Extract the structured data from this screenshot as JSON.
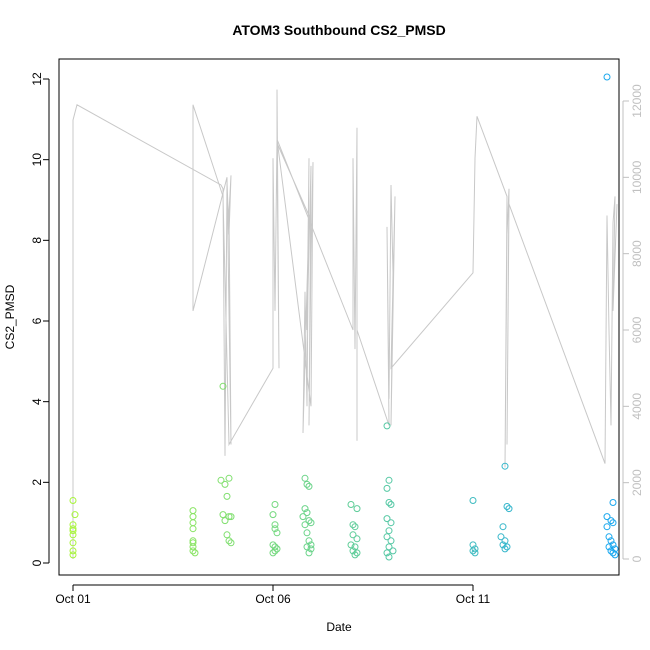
{
  "chart_data": {
    "type": "scatter",
    "title": "ATOM3 Southbound CS2_PMSD",
    "xlabel": "Date",
    "ylabel": "CS2_PMSD",
    "x_tick_labels": [
      "Oct 01",
      "Oct 06",
      "Oct 11"
    ],
    "x_ticks_day": [
      1,
      6,
      11
    ],
    "xlim_day": [
      0.65,
      14.65
    ],
    "ylim": [
      0,
      12.3
    ],
    "y_ticks": [
      "0",
      "2",
      "4",
      "6",
      "8",
      "10",
      "12"
    ],
    "secondary_ylim": [
      0,
      12300
    ],
    "secondary_y_ticks": [
      "0",
      "2000",
      "4000",
      "6000",
      "8000",
      "10000",
      "12000"
    ],
    "point_color_range": [
      "#a8f53a",
      "#19a7f0"
    ],
    "secondary_line_color": "#c8c8c8",
    "series": [
      {
        "points": [
          [
            1.0,
            1.55
          ],
          [
            1.0,
            0.95
          ],
          [
            1.0,
            0.85
          ],
          [
            1.0,
            0.8
          ],
          [
            1.0,
            0.7
          ],
          [
            1.0,
            0.5
          ],
          [
            1.0,
            0.3
          ],
          [
            1.0,
            0.2
          ],
          [
            1.05,
            1.2
          ],
          [
            4.0,
            1.3
          ],
          [
            4.0,
            1.15
          ],
          [
            4.0,
            1.0
          ],
          [
            4.0,
            0.85
          ],
          [
            4.0,
            0.55
          ],
          [
            4.0,
            0.5
          ],
          [
            4.0,
            0.4
          ],
          [
            4.0,
            0.3
          ],
          [
            4.05,
            0.25
          ],
          [
            4.75,
            4.38
          ],
          [
            4.7,
            2.05
          ],
          [
            4.75,
            1.2
          ],
          [
            4.8,
            1.95
          ],
          [
            4.9,
            2.1
          ],
          [
            4.85,
            1.65
          ],
          [
            4.9,
            1.15
          ],
          [
            4.8,
            1.05
          ],
          [
            4.95,
            1.15
          ],
          [
            4.85,
            0.7
          ],
          [
            4.9,
            0.55
          ],
          [
            4.95,
            0.5
          ],
          [
            6.05,
            1.45
          ],
          [
            6.0,
            1.2
          ],
          [
            6.05,
            0.95
          ],
          [
            6.05,
            0.85
          ],
          [
            6.1,
            0.75
          ],
          [
            6.0,
            0.45
          ],
          [
            6.05,
            0.4
          ],
          [
            6.1,
            0.35
          ],
          [
            6.05,
            0.3
          ],
          [
            6.0,
            0.25
          ],
          [
            6.8,
            2.1
          ],
          [
            6.85,
            1.95
          ],
          [
            6.9,
            1.9
          ],
          [
            6.8,
            1.35
          ],
          [
            6.85,
            1.25
          ],
          [
            6.75,
            1.15
          ],
          [
            6.9,
            1.05
          ],
          [
            6.95,
            1.0
          ],
          [
            6.8,
            0.95
          ],
          [
            6.85,
            0.75
          ],
          [
            6.9,
            0.55
          ],
          [
            6.95,
            0.45
          ],
          [
            6.85,
            0.4
          ],
          [
            6.95,
            0.35
          ],
          [
            6.9,
            0.25
          ],
          [
            7.95,
            1.45
          ],
          [
            8.1,
            1.35
          ],
          [
            8.0,
            0.95
          ],
          [
            8.05,
            0.9
          ],
          [
            8.0,
            0.7
          ],
          [
            8.1,
            0.6
          ],
          [
            7.95,
            0.45
          ],
          [
            8.05,
            0.4
          ],
          [
            8.0,
            0.3
          ],
          [
            8.1,
            0.25
          ],
          [
            8.05,
            0.2
          ],
          [
            8.85,
            3.4
          ],
          [
            8.9,
            2.05
          ],
          [
            8.85,
            1.85
          ],
          [
            8.9,
            1.5
          ],
          [
            8.95,
            1.45
          ],
          [
            8.85,
            1.1
          ],
          [
            8.95,
            1.0
          ],
          [
            8.9,
            0.8
          ],
          [
            8.85,
            0.65
          ],
          [
            8.95,
            0.55
          ],
          [
            8.9,
            0.4
          ],
          [
            9.0,
            0.3
          ],
          [
            8.85,
            0.25
          ],
          [
            8.9,
            0.15
          ],
          [
            11.0,
            1.55
          ],
          [
            11.0,
            0.45
          ],
          [
            11.05,
            0.35
          ],
          [
            11.0,
            0.3
          ],
          [
            11.05,
            0.25
          ],
          [
            11.8,
            2.4
          ],
          [
            11.85,
            1.4
          ],
          [
            11.9,
            1.35
          ],
          [
            11.75,
            0.9
          ],
          [
            11.7,
            0.65
          ],
          [
            11.8,
            0.55
          ],
          [
            11.75,
            0.45
          ],
          [
            11.85,
            0.4
          ],
          [
            11.8,
            0.35
          ],
          [
            14.35,
            12.05
          ],
          [
            14.5,
            1.5
          ],
          [
            14.35,
            1.15
          ],
          [
            14.45,
            1.05
          ],
          [
            14.5,
            1.0
          ],
          [
            14.35,
            0.9
          ],
          [
            14.4,
            0.65
          ],
          [
            14.45,
            0.55
          ],
          [
            14.5,
            0.45
          ],
          [
            14.4,
            0.4
          ],
          [
            14.55,
            0.35
          ],
          [
            14.45,
            0.3
          ],
          [
            14.5,
            0.25
          ],
          [
            14.55,
            0.2
          ]
        ]
      },
      {
        "axis": "secondary",
        "line": [
          [
            1.0,
            0
          ],
          [
            1.0,
            11500
          ],
          [
            1.05,
            11700
          ],
          [
            1.1,
            11900
          ],
          [
            4.7,
            9800
          ],
          [
            4.75,
            9700
          ],
          [
            4.8,
            2700
          ],
          [
            4.85,
            9900
          ],
          [
            4.9,
            8500
          ],
          [
            4.95,
            10050
          ],
          [
            4.9,
            9100
          ],
          [
            4.95,
            3000
          ],
          [
            4.85,
            10000
          ],
          [
            4.0,
            6500
          ],
          [
            4.0,
            11900
          ],
          [
            4.75,
            9500
          ],
          [
            4.9,
            3000
          ],
          [
            6.0,
            5000
          ],
          [
            6.0,
            10500
          ],
          [
            6.05,
            6500
          ],
          [
            6.1,
            11000
          ],
          [
            6.1,
            12300
          ],
          [
            6.15,
            5000
          ],
          [
            6.1,
            10900
          ],
          [
            6.9,
            9000
          ],
          [
            6.75,
            3300
          ],
          [
            6.8,
            7000
          ],
          [
            6.85,
            4000
          ],
          [
            6.9,
            10500
          ],
          [
            6.85,
            6000
          ],
          [
            6.95,
            10300
          ],
          [
            6.9,
            3500
          ],
          [
            6.95,
            8000
          ],
          [
            7.0,
            10400
          ],
          [
            6.95,
            4000
          ],
          [
            6.1,
            11000
          ],
          [
            8.0,
            6000
          ],
          [
            8.0,
            10500
          ],
          [
            8.05,
            5500
          ],
          [
            8.1,
            11300
          ],
          [
            8.1,
            3100
          ],
          [
            8.1,
            6000
          ],
          [
            8.9,
            3500
          ],
          [
            8.85,
            8700
          ],
          [
            8.9,
            4200
          ],
          [
            8.95,
            9800
          ],
          [
            9.0,
            7500
          ],
          [
            8.95,
            3500
          ],
          [
            9.05,
            9500
          ],
          [
            8.95,
            5000
          ],
          [
            11.0,
            7500
          ],
          [
            11.05,
            10500
          ],
          [
            11.1,
            11600
          ],
          [
            11.85,
            9500
          ],
          [
            11.8,
            2400
          ],
          [
            11.85,
            8500
          ],
          [
            11.9,
            9700
          ],
          [
            11.85,
            3000
          ],
          [
            11.9,
            9300
          ],
          [
            14.3,
            2500
          ],
          [
            14.35,
            9000
          ],
          [
            14.4,
            6000
          ],
          [
            14.45,
            3500
          ],
          [
            14.5,
            8800
          ],
          [
            14.55,
            9500
          ],
          [
            14.5,
            6500
          ],
          [
            14.6,
            9300
          ]
        ]
      }
    ]
  }
}
